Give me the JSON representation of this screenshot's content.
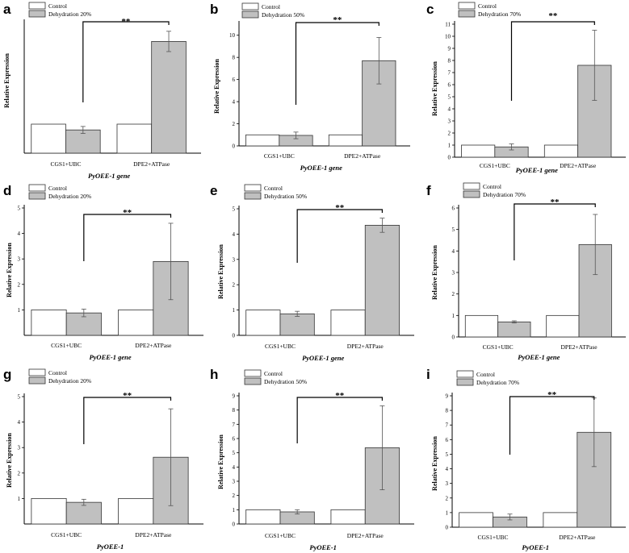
{
  "figure": {
    "colors": {
      "control": "#ffffff",
      "dehydration": "#c0c0c0",
      "axis": "#000000"
    }
  },
  "chart_data": [
    {
      "panel": "a",
      "type": "bar",
      "title": "",
      "categories": [
        "CGS1+UBC",
        "DPE2+ATPase"
      ],
      "series": [
        {
          "name": "Control",
          "values": [
            1.0,
            1.0
          ],
          "errors": [
            0,
            0
          ]
        },
        {
          "name": "Dehydration 20%",
          "values": [
            0.8,
            3.85
          ],
          "errors": [
            0.12,
            0.35
          ]
        }
      ],
      "xlabel": "PyOEE-1 gene",
      "ylabel": "Relative Expression",
      "ylim": [
        0,
        4.5
      ],
      "yticks": [],
      "significance": "**"
    },
    {
      "panel": "b",
      "type": "bar",
      "title": "",
      "categories": [
        "CGS1+UBC",
        "DPE2+ATPase"
      ],
      "series": [
        {
          "name": "Control",
          "values": [
            1.0,
            1.0
          ],
          "errors": [
            0,
            0
          ]
        },
        {
          "name": "Dehydration 50%",
          "values": [
            0.95,
            7.7
          ],
          "errors": [
            0.3,
            2.1
          ]
        }
      ],
      "xlabel": "PyOEE-1 gene",
      "ylabel": "Relative Expression",
      "ylim": [
        0,
        11
      ],
      "yticks": [
        0,
        2,
        4,
        6,
        8,
        10
      ],
      "significance": "**"
    },
    {
      "panel": "c",
      "type": "bar",
      "title": "",
      "categories": [
        "CGS1+UBC",
        "DPE2+ATPase"
      ],
      "series": [
        {
          "name": "Control",
          "values": [
            1.0,
            1.0
          ],
          "errors": [
            0,
            0
          ]
        },
        {
          "name": "Dehydration 70%",
          "values": [
            0.85,
            7.6
          ],
          "errors": [
            0.25,
            2.9
          ]
        }
      ],
      "xlabel": "PyOEE-1 gene",
      "ylabel": "Relative Expression",
      "ylim": [
        0,
        11
      ],
      "yticks": [
        0,
        1,
        2,
        3,
        4,
        5,
        6,
        7,
        8,
        9,
        10,
        11
      ],
      "significance": "**"
    },
    {
      "panel": "d",
      "type": "bar",
      "title": "",
      "categories": [
        "CGS1+UBC",
        "DPE2+ATPase"
      ],
      "series": [
        {
          "name": "Control",
          "values": [
            1.0,
            1.0
          ],
          "errors": [
            0,
            0
          ]
        },
        {
          "name": "Dehydration 20%",
          "values": [
            0.88,
            2.9
          ],
          "errors": [
            0.15,
            1.5
          ]
        }
      ],
      "xlabel": "PyOEE-1 gene",
      "ylabel": "Relative Expression",
      "ylim": [
        0,
        5
      ],
      "yticks": [
        1,
        2,
        3,
        4,
        5
      ],
      "significance": "**"
    },
    {
      "panel": "e",
      "type": "bar",
      "title": "",
      "categories": [
        "CGS1+UBC",
        "DPE2+ATPase"
      ],
      "series": [
        {
          "name": "Control",
          "values": [
            1.0,
            1.0
          ],
          "errors": [
            0,
            0
          ]
        },
        {
          "name": "Dehydration 50%",
          "values": [
            0.85,
            4.35
          ],
          "errors": [
            0.1,
            0.28
          ]
        }
      ],
      "xlabel": "PyOEE-1 gene",
      "ylabel": "Relative Expression",
      "ylim": [
        0,
        5
      ],
      "yticks": [
        0,
        1,
        2,
        3,
        4,
        5
      ],
      "significance": "**"
    },
    {
      "panel": "f",
      "type": "bar",
      "title": "",
      "categories": [
        "CGS1+UBC",
        "DPE2+ATPase"
      ],
      "series": [
        {
          "name": "Control",
          "values": [
            1.0,
            1.0
          ],
          "errors": [
            0,
            0
          ]
        },
        {
          "name": "Dehydration 70%",
          "values": [
            0.7,
            4.3
          ],
          "errors": [
            0.05,
            1.4
          ]
        }
      ],
      "xlabel": "PyOEE-1 gene",
      "ylabel": "Relative Expression",
      "ylim": [
        0,
        6
      ],
      "yticks": [
        0,
        1,
        2,
        3,
        4,
        5,
        6
      ],
      "significance": "**"
    },
    {
      "panel": "g",
      "type": "bar",
      "title": "",
      "categories": [
        "CGS1+UBC",
        "DPE2+ATPase"
      ],
      "series": [
        {
          "name": "Control",
          "values": [
            1.0,
            1.0
          ],
          "errors": [
            0,
            0
          ]
        },
        {
          "name": "Dehydration 20%",
          "values": [
            0.85,
            2.62
          ],
          "errors": [
            0.12,
            1.9
          ]
        }
      ],
      "xlabel": "PyOEE-1",
      "ylabel": "Relative Expression",
      "ylim": [
        0,
        5
      ],
      "yticks": [
        1,
        2,
        3,
        4,
        5
      ],
      "significance": "**"
    },
    {
      "panel": "h",
      "type": "bar",
      "title": "",
      "categories": [
        "CGS1+UBC",
        "DPE2+ATPase"
      ],
      "series": [
        {
          "name": "Control",
          "values": [
            1.0,
            1.0
          ],
          "errors": [
            0,
            0
          ]
        },
        {
          "name": "Dehydration 50%",
          "values": [
            0.85,
            5.35
          ],
          "errors": [
            0.15,
            2.95
          ]
        }
      ],
      "xlabel": "PyOEE-1",
      "ylabel": "Relative Expression",
      "ylim": [
        0,
        9
      ],
      "yticks": [
        0,
        1,
        2,
        3,
        4,
        5,
        6,
        7,
        8,
        9
      ],
      "significance": "**"
    },
    {
      "panel": "i",
      "type": "bar",
      "title": "",
      "categories": [
        "CGS1+UBC",
        "DPE2+ATPase"
      ],
      "series": [
        {
          "name": "Control",
          "values": [
            1.0,
            1.0
          ],
          "errors": [
            0,
            0
          ]
        },
        {
          "name": "Dehydration 70%",
          "values": [
            0.7,
            6.5
          ],
          "errors": [
            0.2,
            2.35
          ]
        }
      ],
      "xlabel": "PyOEE-1",
      "ylabel": "Relative Expression",
      "ylim": [
        0,
        9
      ],
      "yticks": [
        0,
        1,
        2,
        3,
        4,
        5,
        6,
        7,
        8,
        9
      ],
      "significance": "**"
    }
  ]
}
